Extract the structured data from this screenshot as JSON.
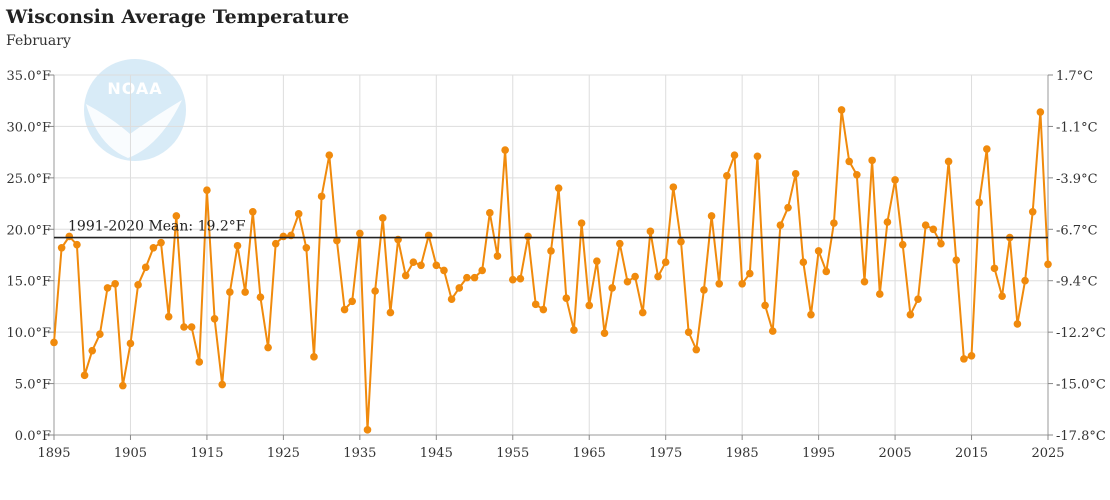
{
  "logo": {
    "name": "noara-logo",
    "text": "NOAA"
  },
  "colors": {
    "series": "#f08a0c",
    "mean": "#222222",
    "grid": "#dddddd",
    "logo": "#d8ebf7"
  },
  "chart_data": {
    "type": "line",
    "title": "Wisconsin Average Temperature",
    "subtitle": "February",
    "xlabel": "",
    "ylabel": "",
    "xlim": [
      1895,
      2025
    ],
    "ylim": [
      0,
      35
    ],
    "y2lim": [
      -17.8,
      1.7
    ],
    "grid": true,
    "x_ticks": [
      1895,
      1905,
      1915,
      1925,
      1935,
      1945,
      1955,
      1965,
      1975,
      1985,
      1995,
      2005,
      2015,
      2025
    ],
    "y_ticks": [
      0,
      5,
      10,
      15,
      20,
      25,
      30,
      35
    ],
    "y_tick_labels": [
      "0.0°F",
      "5.0°F",
      "10.0°F",
      "15.0°F",
      "20.0°F",
      "25.0°F",
      "30.0°F",
      "35.0°F"
    ],
    "y2_tick_labels": [
      "-17.8°C",
      "-15.0°C",
      "-12.2°C",
      "-9.4°C",
      "-6.7°C",
      "-3.9°C",
      "-1.1°C",
      "1.7°C"
    ],
    "mean": {
      "value": 19.2,
      "label": "1991-2020 Mean: 19.2°F"
    },
    "series": [
      {
        "x": [
          1895,
          1896,
          1897,
          1898,
          1899,
          1900,
          1901,
          1902,
          1903,
          1904,
          1905,
          1906,
          1907,
          1908,
          1909,
          1910,
          1911,
          1912,
          1913,
          1914,
          1915,
          1916,
          1917,
          1918,
          1919,
          1920,
          1921,
          1922,
          1923,
          1924,
          1925,
          1926,
          1927,
          1928,
          1929,
          1930,
          1931,
          1932,
          1933,
          1934,
          1935,
          1936,
          1937,
          1938,
          1939,
          1940,
          1941,
          1942,
          1943,
          1944,
          1945,
          1946,
          1947,
          1948,
          1949,
          1950,
          1951,
          1952,
          1953,
          1954,
          1955,
          1956,
          1957,
          1958,
          1959,
          1960,
          1961,
          1962,
          1963,
          1964,
          1965,
          1966,
          1967,
          1968,
          1969,
          1970,
          1971,
          1972,
          1973,
          1974,
          1975,
          1976,
          1977,
          1978,
          1979,
          1980,
          1981,
          1982,
          1983,
          1984,
          1985,
          1986,
          1987,
          1988,
          1989,
          1990,
          1991,
          1992,
          1993,
          1994,
          1995,
          1996,
          1997,
          1998,
          1999,
          2000,
          2001,
          2002,
          2003,
          2004,
          2005,
          2006,
          2007,
          2008,
          2009,
          2010,
          2011,
          2012,
          2013,
          2014,
          2015,
          2016,
          2017,
          2018,
          2019,
          2020,
          2021,
          2022,
          2023,
          2024,
          2025
        ],
        "values": [
          9.0,
          18.2,
          19.3,
          18.5,
          5.8,
          8.2,
          9.8,
          14.3,
          14.7,
          4.8,
          8.9,
          14.6,
          16.3,
          18.2,
          18.7,
          11.5,
          21.3,
          10.5,
          10.5,
          7.1,
          23.8,
          11.3,
          4.9,
          13.9,
          18.4,
          13.9,
          21.7,
          13.4,
          8.5,
          18.6,
          19.3,
          19.4,
          21.5,
          18.2,
          7.6,
          23.2,
          27.2,
          18.9,
          12.2,
          13.0,
          19.6,
          0.5,
          14.0,
          21.1,
          11.9,
          19.0,
          15.5,
          16.8,
          16.5,
          19.4,
          16.5,
          16.0,
          13.2,
          14.3,
          15.3,
          15.3,
          16.0,
          21.6,
          17.4,
          27.7,
          15.1,
          15.2,
          19.3,
          12.7,
          12.2,
          17.9,
          24.0,
          13.3,
          10.2,
          20.6,
          12.6,
          16.9,
          9.9,
          14.3,
          18.6,
          14.9,
          15.4,
          11.9,
          19.8,
          15.4,
          16.8,
          24.1,
          18.8,
          10.0,
          8.3,
          14.1,
          21.3,
          14.7,
          25.2,
          27.2,
          14.7,
          15.7,
          27.1,
          12.6,
          10.1,
          20.4,
          22.1,
          25.4,
          16.8,
          11.7,
          17.9,
          15.9,
          20.6,
          31.6,
          26.6,
          25.3,
          14.9,
          26.7,
          13.7,
          20.7,
          24.8,
          18.5,
          11.7,
          13.2,
          20.4,
          20.0,
          18.6,
          26.6,
          17.0,
          7.4,
          7.7,
          22.6,
          27.8,
          16.2,
          13.5,
          19.2,
          10.8,
          15.0,
          21.7,
          31.4,
          16.6
        ]
      }
    ]
  }
}
